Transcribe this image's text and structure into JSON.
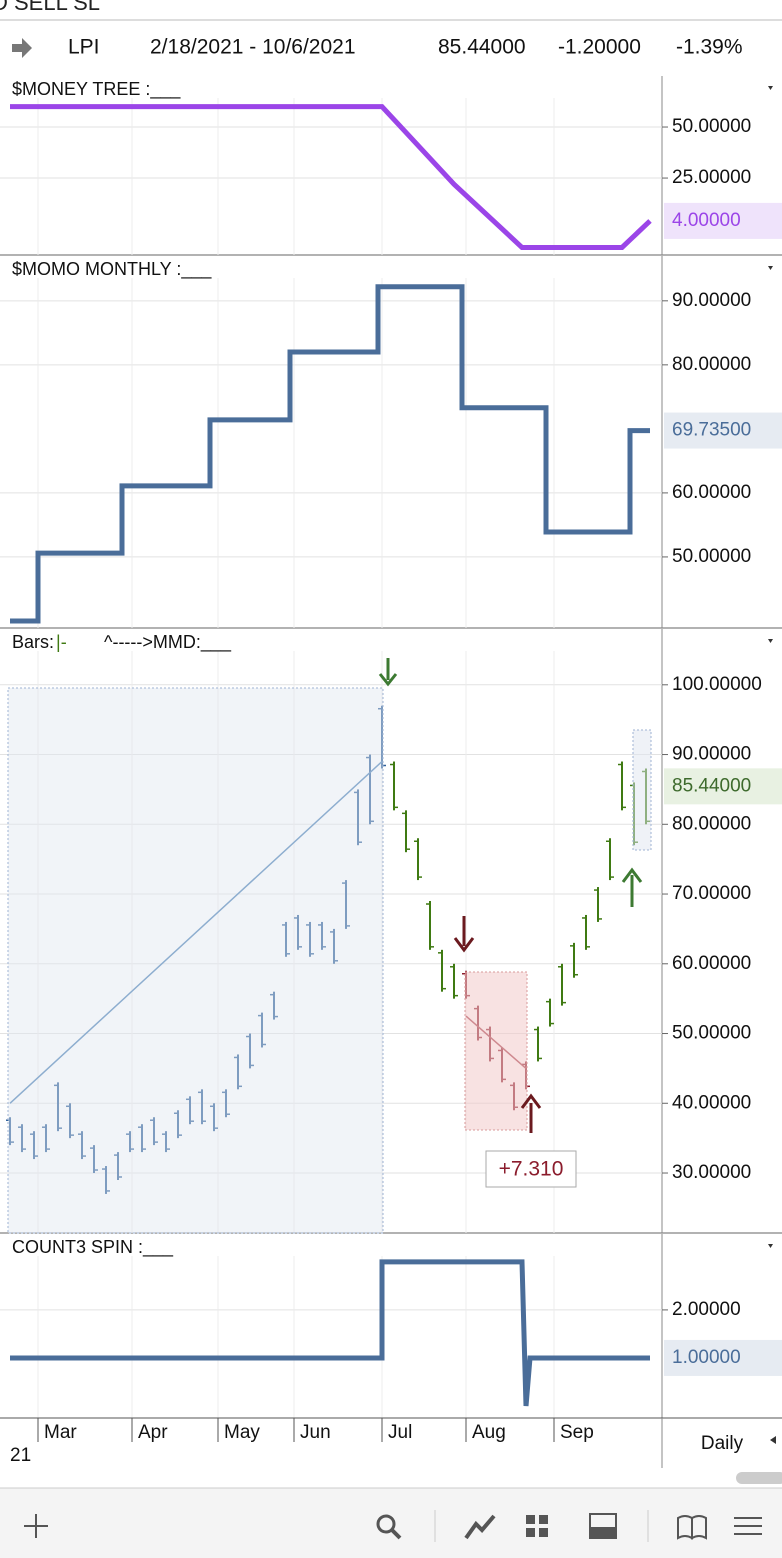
{
  "top_strip": "D SELL SL",
  "header": {
    "symbol": "LPI",
    "range": "2/18/2021 - 10/6/2021",
    "last": "85.44000",
    "change": "-1.20000",
    "percent": "-1.39%"
  },
  "xlim": [
    -2.5,
    163
  ],
  "xticks": [
    {
      "value": 7,
      "label": "Mar"
    },
    {
      "value": 30.5,
      "label": "Apr"
    },
    {
      "value": 52,
      "label": "May"
    },
    {
      "value": 71,
      "label": "Jun"
    },
    {
      "value": 93,
      "label": "Jul"
    },
    {
      "value": 114,
      "label": "Aug"
    },
    {
      "value": 136,
      "label": "Sep"
    }
  ],
  "year_label": "21",
  "period": "Daily",
  "panels": [
    {
      "title": "$MONEY TREE :___",
      "top": 76,
      "bottom": 255,
      "ylim": [
        -12.7,
        75
      ],
      "yticks": [
        {
          "value": 50,
          "label": "50.00000"
        },
        {
          "value": 25,
          "label": "25.00000"
        }
      ],
      "last": {
        "value": 4,
        "label": "4.00000"
      },
      "color": "#9b45e8",
      "label_bg": "#efe3fb",
      "series": {
        "x": [
          0,
          93,
          111,
          128,
          153,
          160
        ],
        "values": [
          60,
          60,
          22,
          -9,
          -9,
          4
        ]
      }
    },
    {
      "title": "$MOMO MONTHLY :___",
      "top": 256,
      "bottom": 628,
      "ylim": [
        38.9,
        97
      ],
      "yticks": [
        {
          "value": 90,
          "label": "90.00000"
        },
        {
          "value": 80,
          "label": "80.00000"
        },
        {
          "value": 60,
          "label": "60.00000"
        },
        {
          "value": 50,
          "label": "50.00000"
        }
      ],
      "last": {
        "value": 69.735,
        "label": "69.73500"
      },
      "color": "#4a6d99",
      "label_bg": "#e6ebf2",
      "series": {
        "x": [
          0,
          7,
          7,
          28,
          28,
          50,
          50,
          70,
          70,
          92,
          92,
          113,
          113,
          134,
          134,
          155,
          155,
          160
        ],
        "values": [
          40,
          40,
          50.6,
          50.6,
          61.1,
          61.1,
          71.4,
          71.4,
          82,
          82,
          92.2,
          92.2,
          73.3,
          73.3,
          53.9,
          53.9,
          69.735,
          69.735
        ]
      }
    },
    {
      "title": "Bars:",
      "title_mark": "|-",
      "title_rest": "^----->MMD:___",
      "top": 629,
      "bottom": 1233,
      "ylim": [
        21.4,
        108
      ],
      "yticks": [
        {
          "value": 100,
          "label": "100.00000"
        },
        {
          "value": 90,
          "label": "90.00000"
        },
        {
          "value": 80,
          "label": "80.00000"
        },
        {
          "value": 70,
          "label": "70.00000"
        },
        {
          "value": 60,
          "label": "60.00000"
        },
        {
          "value": 50,
          "label": "50.00000"
        },
        {
          "value": 40,
          "label": "40.00000"
        },
        {
          "value": 30,
          "label": "30.00000"
        }
      ],
      "last": {
        "value": 85.44,
        "label": "85.44000"
      },
      "color": "#3d6a2c",
      "label_bg": "#e8f1e2",
      "annotation": "+7.310",
      "bars": {
        "x": [
          0,
          3,
          6,
          9,
          12,
          15,
          18,
          21,
          24,
          27,
          30,
          33,
          36,
          39,
          42,
          45,
          48,
          51,
          54,
          57,
          60,
          63,
          66,
          69,
          72,
          75,
          78,
          81,
          84,
          87,
          90,
          93,
          96,
          99,
          102,
          105,
          108,
          111,
          114,
          117,
          120,
          123,
          126,
          129,
          132,
          135,
          138,
          141,
          144,
          147,
          150,
          153,
          156,
          159
        ],
        "low": [
          34,
          33,
          32,
          33,
          36,
          35,
          32,
          30,
          27,
          29,
          33,
          33,
          34,
          33,
          35,
          37,
          37,
          36,
          38,
          42,
          45,
          48,
          52,
          61,
          62,
          61,
          62,
          60,
          65,
          77,
          80,
          88,
          82,
          76,
          72,
          62,
          56,
          55,
          55,
          49,
          46,
          43,
          39,
          42,
          46,
          51,
          54,
          58,
          62,
          66,
          72,
          82,
          77,
          80
        ],
        "high": [
          38,
          37,
          36,
          37,
          43,
          40,
          36,
          34,
          31,
          33,
          36,
          37,
          38,
          36,
          39,
          41,
          42,
          40,
          42,
          47,
          50,
          53,
          56,
          66,
          67,
          66,
          66,
          65,
          72,
          85,
          90,
          97,
          89,
          82,
          78,
          69,
          62,
          60,
          59,
          54,
          51,
          48,
          43,
          46,
          51,
          55,
          60,
          63,
          67,
          71,
          78,
          89,
          86,
          88
        ]
      },
      "color_ranges": [
        {
          "start": 0,
          "end": 93,
          "color": "#2e5f9a"
        },
        {
          "start": 94,
          "end": 113,
          "color": "#3f7a12"
        },
        {
          "start": 114,
          "end": 129,
          "color": "#8b1c2c"
        },
        {
          "start": 130,
          "end": 160,
          "color": "#3f7a12"
        }
      ],
      "averages": [
        {
          "color": "#4a7fb5",
          "x": [
            0,
            93
          ],
          "values": [
            40,
            89
          ]
        },
        {
          "color": "#a33a48",
          "x": [
            114,
            129
          ],
          "values": [
            52.5,
            45
          ]
        }
      ]
    },
    {
      "title": "COUNT3 SPIN :___",
      "top": 1234,
      "bottom": 1418,
      "ylim": [
        -0.25,
        3.58
      ],
      "yticks": [
        {
          "value": 2,
          "label": "2.00000"
        }
      ],
      "last": {
        "value": 1,
        "label": "1.00000"
      },
      "color": "#4a6d99",
      "label_bg": "#e6ebf2",
      "series": {
        "x": [
          0,
          93,
          93,
          128,
          129,
          130,
          160
        ],
        "values": [
          1,
          1,
          3,
          3,
          0,
          1,
          1
        ]
      }
    }
  ]
}
